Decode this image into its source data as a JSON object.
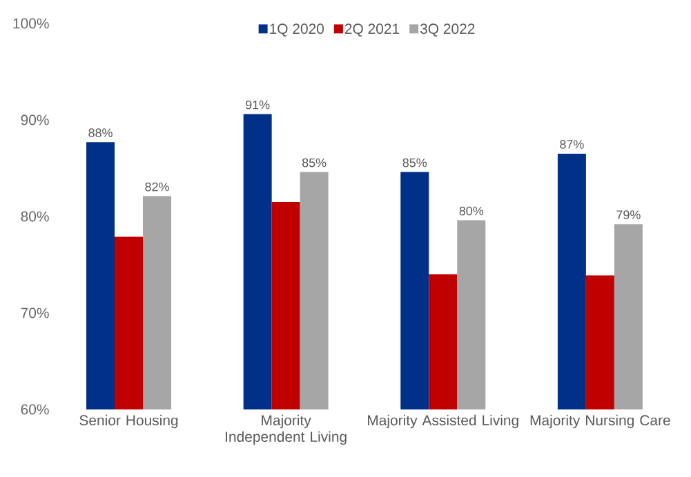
{
  "chart_data": {
    "type": "bar",
    "categories": [
      "Senior Housing",
      "Majority Independent Living",
      "Majority Assisted Living",
      "Majority Nursing Care"
    ],
    "series": [
      {
        "name": "1Q 2020",
        "color": "#003087",
        "values": [
          87.7,
          90.6,
          84.6,
          86.5
        ],
        "value_labels": [
          "88%",
          "91%",
          "85%",
          "87%"
        ]
      },
      {
        "name": "2Q 2021",
        "color": "#c00000",
        "values": [
          77.9,
          81.5,
          74.0,
          73.9
        ]
      },
      {
        "name": "3Q 2022",
        "color": "#a6a6a6",
        "values": [
          82.1,
          84.6,
          79.6,
          79.2
        ],
        "value_labels": [
          "82%",
          "85%",
          "80%",
          "79%"
        ]
      }
    ],
    "ylim": [
      60,
      100
    ],
    "yticks": [
      {
        "value": 60,
        "label": "60%"
      },
      {
        "value": 70,
        "label": "70%"
      },
      {
        "value": 80,
        "label": "80%"
      },
      {
        "value": 90,
        "label": "90%"
      },
      {
        "value": 100,
        "label": "100%"
      }
    ],
    "grid": false,
    "legend": "top"
  }
}
